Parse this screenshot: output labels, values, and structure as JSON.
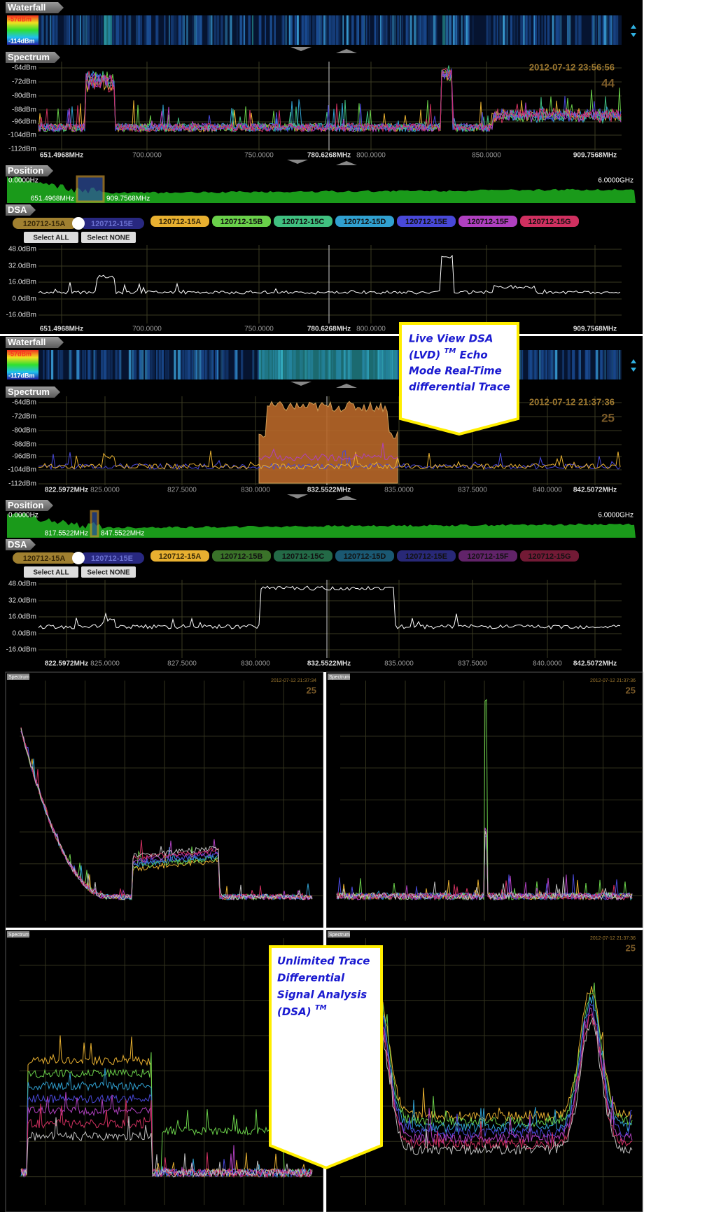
{
  "panels": [
    {
      "waterfall": {
        "tab": "Waterfall",
        "scale_max": "-57dBm",
        "scale_min": "-114dBm"
      },
      "spectrum": {
        "tab": "Spectrum",
        "y_labels": [
          "-64dBm",
          "-72dBm",
          "-80dBm",
          "-88dBm",
          "-96dBm",
          "-104dBm",
          "-112dBm"
        ],
        "timestamp": "2012-07-12 23:56:56",
        "count": "44",
        "x_labels": [
          "651.4968MHz",
          "700.0000",
          "750.0000",
          "780.6268MHz",
          "800.0000",
          "850.0000",
          "909.7568MHz"
        ]
      },
      "position": {
        "tab": "Position",
        "start": "0.0000Hz",
        "stop": "6.0000GHz",
        "span_start": "651.4968MHz",
        "span_end": "909.7568MHz"
      },
      "dsa": {
        "tab": "DSA",
        "compare": [
          "120712-15A",
          "120712-15E"
        ],
        "traces": [
          "120712-15A",
          "120712-15B",
          "120712-15C",
          "120712-15D",
          "120712-15E",
          "120712-15F",
          "120712-15G"
        ],
        "select_all": "Select ALL",
        "select_none": "Select NONE",
        "y_labels": [
          "48.0dBm",
          "32.0dBm",
          "16.0dBm",
          "0.0dBm",
          "-16.0dBm"
        ],
        "x_labels": [
          "651.4968MHz",
          "700.0000",
          "750.0000",
          "780.6268MHz",
          "800.0000",
          "850.0000",
          "909.7568MHz"
        ]
      }
    },
    {
      "waterfall": {
        "tab": "Waterfall",
        "scale_max": "-57dBm",
        "scale_min": "-117dBm"
      },
      "spectrum": {
        "tab": "Spectrum",
        "y_labels": [
          "-64dBm",
          "-72dBm",
          "-80dBm",
          "-88dBm",
          "-96dBm",
          "-104dBm",
          "-112dBm"
        ],
        "timestamp": "2012-07-12 21:37:36",
        "count": "25",
        "x_labels": [
          "822.5972MHz",
          "825.0000",
          "827.5000",
          "830.0000",
          "832.5522MHz",
          "835.0000",
          "837.5000",
          "840.0000",
          "842.5072MHz"
        ]
      },
      "position": {
        "tab": "Position",
        "start": "0.0000Hz",
        "stop": "6.0000GHz",
        "span_start": "817.5522MHz",
        "span_end": "847.5522MHz"
      },
      "dsa": {
        "tab": "DSA",
        "compare": [
          "120712-15A",
          "120712-15E"
        ],
        "traces": [
          "120712-15A",
          "120712-15B",
          "120712-15C",
          "120712-15D",
          "120712-15E",
          "120712-15F",
          "120712-15G"
        ],
        "select_all": "Select ALL",
        "select_none": "Select NONE",
        "y_labels": [
          "48.0dBm",
          "32.0dBm",
          "16.0dBm",
          "0.0dBm",
          "-16.0dBm"
        ],
        "x_labels": [
          "822.5972MHz",
          "825.0000",
          "827.5000",
          "830.0000",
          "832.5522MHz",
          "835.0000",
          "837.5000",
          "840.0000",
          "842.5072MHz"
        ]
      }
    }
  ],
  "callouts": [
    {
      "lines": [
        "Live View DSA",
        "(LVD)",
        "Echo",
        "Mode Real-Time",
        "differential Trace"
      ],
      "sup": "TM"
    },
    {
      "lines": [
        "Unlimited Trace",
        "Differential",
        "Signal Analysis",
        "(DSA)"
      ],
      "sup": "TM"
    }
  ],
  "quad": [
    {
      "tab": "Spectrum",
      "timestamp": "2012-07-12 21:37:34",
      "count": "25"
    },
    {
      "tab": "Spectrum",
      "timestamp": "2012-07-12 21:37:36",
      "count": "25"
    },
    {
      "tab": "Spectrum"
    },
    {
      "tab": "Spectrum",
      "timestamp": "2012-07-12 21:37:36",
      "count": "25"
    }
  ]
}
